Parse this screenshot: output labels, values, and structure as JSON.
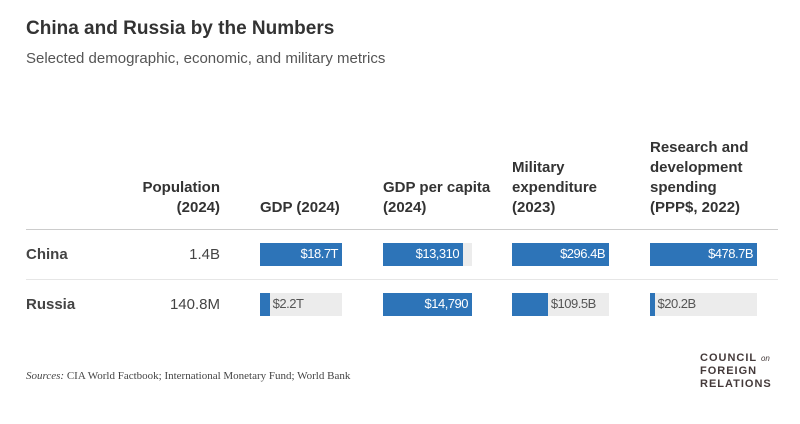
{
  "title": "China and Russia by the Numbers",
  "subtitle": "Selected demographic, economic, and military metrics",
  "source_label": "Sources:",
  "source_text": "CIA World Factbook; International Monetary Fund; World Bank",
  "logo": {
    "line1": "COUNCIL",
    "on": "on",
    "line2": "FOREIGN",
    "line3": "RELATIONS"
  },
  "colors": {
    "bar": "#2d74b8",
    "track": "#ececec"
  },
  "chart_data": {
    "type": "table",
    "columns": [
      {
        "header": "Population (2024)",
        "key": "population"
      },
      {
        "header": "GDP (2024)",
        "key": "gdp"
      },
      {
        "header": "GDP per capita (2024)",
        "key": "gdp_pc"
      },
      {
        "header": "Military expenditure (2023)",
        "key": "military"
      },
      {
        "header": "Research and development spending (PPP$, 2022)",
        "key": "rnd"
      }
    ],
    "rows": [
      {
        "country": "China",
        "population": "1.4B",
        "gdp": {
          "label": "$18.7T",
          "value": 18.7
        },
        "gdp_pc": {
          "label": "$13,310",
          "value": 13310
        },
        "military": {
          "label": "$296.4B",
          "value": 296.4
        },
        "rnd": {
          "label": "$478.7B",
          "value": 478.7
        }
      },
      {
        "country": "Russia",
        "population": "140.8M",
        "gdp": {
          "label": "$2.2T",
          "value": 2.2
        },
        "gdp_pc": {
          "label": "$14,790",
          "value": 14790
        },
        "military": {
          "label": "$109.5B",
          "value": 109.5
        },
        "rnd": {
          "label": "$20.2B",
          "value": 20.2
        }
      }
    ]
  }
}
